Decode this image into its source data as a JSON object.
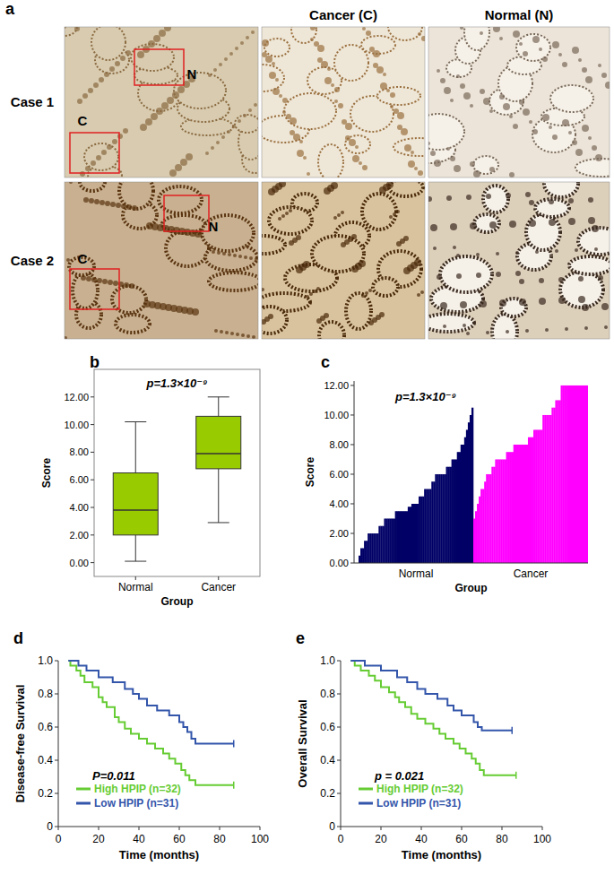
{
  "figure_a": {
    "label": "a",
    "column_titles": [
      "Cancer (C)",
      "Normal (N)"
    ],
    "rows": [
      {
        "label": "Case 1",
        "markers": [
          "C",
          "N"
        ]
      },
      {
        "label": "Case 2",
        "markers": [
          "C",
          "N"
        ]
      }
    ]
  },
  "chart_data": [
    {
      "type": "box",
      "title": "b",
      "annotation": "p=1.3×10⁻⁹",
      "x_label": "Group",
      "y_label": "Score",
      "categories": [
        "Normal",
        "Cancer"
      ],
      "color": "#99cc00",
      "boxes": [
        {
          "min": 0.1,
          "q1": 2.0,
          "median": 3.8,
          "q3": 6.5,
          "max": 10.2
        },
        {
          "min": 2.9,
          "q1": 6.8,
          "median": 7.9,
          "q3": 10.6,
          "max": 12.0
        }
      ],
      "ylim": [
        -1,
        14
      ],
      "yticks": [
        {
          "value": 0,
          "label": "0.00"
        },
        {
          "value": 2,
          "label": "2.00"
        },
        {
          "value": 4,
          "label": "4.00"
        },
        {
          "value": 6,
          "label": "6.00"
        },
        {
          "value": 8,
          "label": "8.00"
        },
        {
          "value": 10,
          "label": "10.00"
        },
        {
          "value": 12,
          "label": "12.00"
        }
      ]
    },
    {
      "type": "sorted_bar",
      "title": "c",
      "annotation": "p=1.3×10⁻⁹",
      "x_label": "Group",
      "y_label": "Score",
      "groups": [
        {
          "name": "Normal",
          "color": "#000066",
          "values": [
            0.5,
            1,
            1,
            1.5,
            1.5,
            2,
            2,
            2,
            2,
            2,
            2,
            2.5,
            2.5,
            2.5,
            3,
            3,
            3,
            3,
            3,
            3,
            3.5,
            3.5,
            3.5,
            3.5,
            3.5,
            3.5,
            3.5,
            3.8,
            3.8,
            4,
            4,
            4,
            4,
            4.5,
            4.5,
            4.5,
            5,
            5,
            5,
            5,
            5.5,
            5.5,
            6,
            6,
            6,
            6,
            6,
            6,
            6.5,
            6.5,
            6.5,
            7,
            7,
            7,
            7.5,
            7.5,
            8,
            8,
            8.5,
            9,
            9.5,
            10,
            10.5
          ]
        },
        {
          "name": "Cancer",
          "color": "#ff00ff",
          "values": [
            3,
            3.5,
            4,
            4.5,
            5,
            5,
            5.5,
            6,
            6,
            6,
            6.5,
            6.5,
            7,
            7,
            7,
            7,
            7,
            7,
            7.5,
            7.5,
            7.5,
            7.5,
            8,
            8,
            8,
            8,
            8,
            8,
            8,
            8,
            8.5,
            8.5,
            8.5,
            9,
            9,
            9,
            9,
            9,
            10,
            10,
            10,
            10,
            10,
            10.5,
            10.5,
            11,
            11,
            11,
            12,
            12,
            12,
            12,
            12,
            12,
            12,
            12,
            12,
            12,
            12,
            12,
            12,
            12,
            12
          ]
        }
      ],
      "ylim": [
        0,
        12.3
      ],
      "yticks": [
        {
          "value": 0,
          "label": "0.00"
        },
        {
          "value": 2,
          "label": "2.00"
        },
        {
          "value": 4,
          "label": "4.00"
        },
        {
          "value": 6,
          "label": "6.00"
        },
        {
          "value": 8,
          "label": "8.00"
        },
        {
          "value": 10,
          "label": "10.00"
        },
        {
          "value": 12,
          "label": "12.00"
        }
      ]
    },
    {
      "type": "line",
      "line_style": "step",
      "title": "d",
      "annotation": "P=0.011",
      "x_label": "Time (months)",
      "y_label": "Disease-free Survival",
      "legend": "lower-left",
      "series": [
        {
          "name": "High HPIP (n=32)",
          "color": "#66cc33",
          "x": [
            5,
            6,
            9,
            11,
            13,
            17,
            20,
            22,
            24,
            28,
            30,
            33,
            36,
            40,
            44,
            48,
            52,
            55,
            58,
            61,
            63,
            65,
            68,
            87
          ],
          "values": [
            1.0,
            0.97,
            0.94,
            0.91,
            0.87,
            0.84,
            0.78,
            0.75,
            0.72,
            0.66,
            0.63,
            0.59,
            0.56,
            0.53,
            0.5,
            0.47,
            0.44,
            0.41,
            0.38,
            0.34,
            0.31,
            0.28,
            0.25,
            0.25
          ]
        },
        {
          "name": "Low HPIP (n=31)",
          "color": "#3355aa",
          "x": [
            5,
            10,
            14,
            20,
            27,
            33,
            37,
            40,
            44,
            49,
            55,
            60,
            62,
            64,
            66,
            68,
            87
          ],
          "values": [
            1.0,
            0.97,
            0.94,
            0.9,
            0.87,
            0.83,
            0.8,
            0.77,
            0.73,
            0.7,
            0.67,
            0.63,
            0.6,
            0.57,
            0.53,
            0.5,
            0.5
          ]
        }
      ],
      "xlim": [
        0,
        100
      ],
      "xticks": [
        0,
        20,
        40,
        60,
        80,
        100
      ],
      "ylim": [
        0,
        1
      ],
      "yticks": [
        0,
        0.2,
        0.4,
        0.6,
        0.8,
        {
          "value": 1,
          "label": "1.0"
        }
      ]
    },
    {
      "type": "line",
      "line_style": "step",
      "title": "e",
      "annotation": "p = 0.021",
      "x_label": "Time (months)",
      "y_label": "Overall Survival",
      "legend": "lower-left",
      "series": [
        {
          "name": "High HPIP (n=32)",
          "color": "#66cc33",
          "x": [
            5,
            7,
            10,
            14,
            17,
            20,
            24,
            27,
            29,
            32,
            35,
            38,
            42,
            46,
            49,
            52,
            56,
            59,
            62,
            65,
            67,
            69,
            71,
            87
          ],
          "values": [
            1.0,
            0.97,
            0.94,
            0.91,
            0.88,
            0.84,
            0.81,
            0.78,
            0.75,
            0.72,
            0.68,
            0.65,
            0.62,
            0.59,
            0.56,
            0.53,
            0.5,
            0.47,
            0.44,
            0.41,
            0.38,
            0.34,
            0.31,
            0.31
          ]
        },
        {
          "name": "Low HPIP (n=31)",
          "color": "#3355aa",
          "x": [
            5,
            12,
            20,
            28,
            33,
            38,
            42,
            48,
            53,
            56,
            60,
            66,
            68,
            70,
            85
          ],
          "values": [
            1.0,
            0.97,
            0.94,
            0.9,
            0.87,
            0.83,
            0.8,
            0.77,
            0.73,
            0.7,
            0.67,
            0.63,
            0.6,
            0.58,
            0.58
          ]
        }
      ],
      "xlim": [
        0,
        100
      ],
      "xticks": [
        0,
        20,
        40,
        60,
        80,
        100
      ],
      "ylim": [
        0,
        1
      ],
      "yticks": [
        0,
        0.2,
        0.4,
        0.6,
        0.8,
        {
          "value": 1,
          "label": "1.0"
        }
      ]
    }
  ]
}
